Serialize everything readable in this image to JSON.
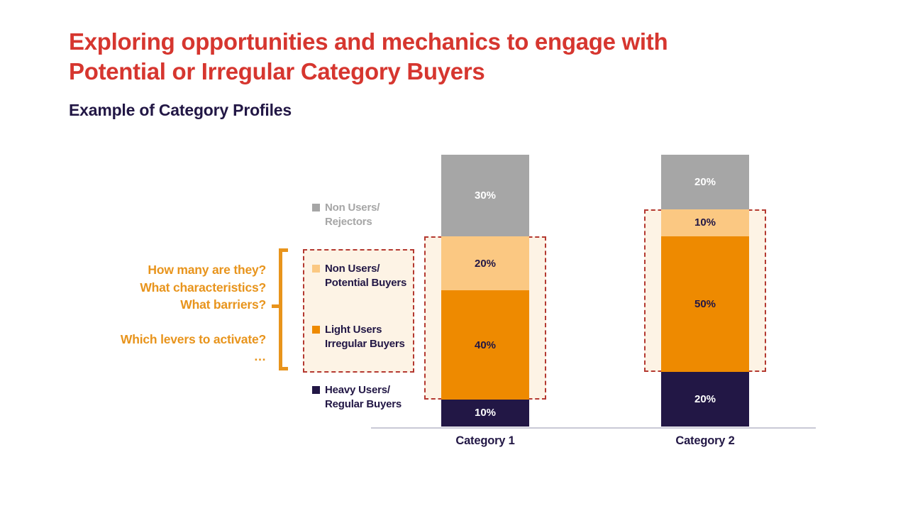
{
  "header": {
    "title": "Exploring opportunities and mechanics to engage with Potential or Irregular Category Buyers",
    "subtitle": "Example of Category Profiles"
  },
  "questions": {
    "lines": [
      "How many are they?",
      "What characteristics?",
      "What barriers?",
      "Which levers to activate?",
      "…"
    ]
  },
  "legend": {
    "items": [
      {
        "line1": "Non Users/",
        "line2": "Rejectors",
        "swatch": "#A6A6A6",
        "text_color": "#A6A6A6"
      },
      {
        "line1": "Non Users/",
        "line2": "Potential Buyers",
        "swatch": "#FBC882",
        "text_color": "#221745"
      },
      {
        "line1": "Light Users",
        "line2": "Irregular Buyers",
        "swatch": "#EE8A00",
        "text_color": "#221745"
      },
      {
        "line1": "Heavy Users/",
        "line2": "Regular Buyers",
        "swatch": "#221745",
        "text_color": "#221745"
      }
    ]
  },
  "chart_data": {
    "type": "bar",
    "stacked": true,
    "categories": [
      "Category 1",
      "Category 2"
    ],
    "series": [
      {
        "name": "Heavy Users/ Regular Buyers",
        "values": [
          10,
          20
        ],
        "color": "#221745",
        "label_color": "#FFFFFF"
      },
      {
        "name": "Light Users Irregular Buyers",
        "values": [
          40,
          50
        ],
        "color": "#EE8A00",
        "label_color": "#221745"
      },
      {
        "name": "Non Users/ Potential Buyers",
        "values": [
          20,
          10
        ],
        "color": "#FBC882",
        "label_color": "#221745"
      },
      {
        "name": "Non Users/ Rejectors",
        "values": [
          30,
          20
        ],
        "color": "#A6A6A6",
        "label_color": "#FFFFFF"
      }
    ],
    "value_suffix": "%",
    "ylim": [
      0,
      100
    ],
    "grid": false,
    "legend_position": "left",
    "highlight": {
      "note": "Dashed red boxes highlight the Non Users/Potential Buyers and Light Users Irregular Buyers segments of both bars, plus the matching legend entries",
      "series_highlighted": [
        "Non Users/ Potential Buyers",
        "Light Users Irregular Buyers"
      ]
    }
  },
  "colors": {
    "title_red": "#D6362F",
    "navy": "#221745",
    "orange": "#EE8A00",
    "light_orange": "#FBC882",
    "gray": "#A6A6A6",
    "accent_orange": "#E8941C",
    "cream": "#FDF3E5",
    "dashed_red": "#B43931",
    "axis_gray": "#C9C9D6"
  }
}
